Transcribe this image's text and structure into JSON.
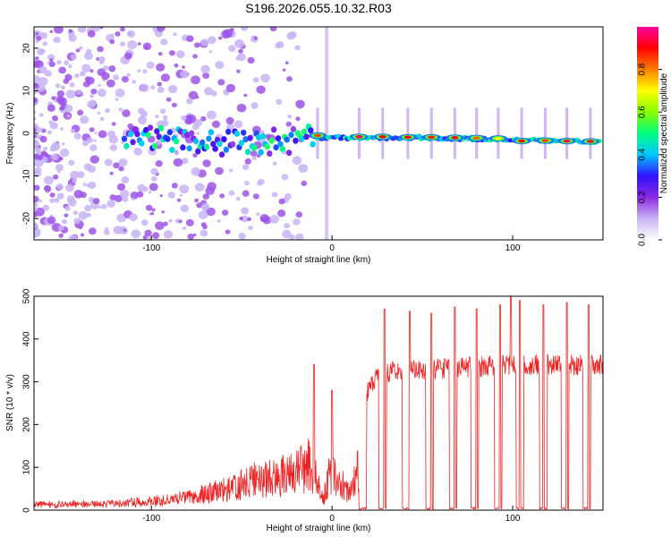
{
  "figure_title": "S196.2026.055.10.32.R03",
  "colors": {
    "snr_line": "#ee2222",
    "axis": "#000000",
    "colormap": [
      "#ffffff",
      "#c8b4f4",
      "#8a2be2",
      "#3010ff",
      "#00c8ff",
      "#00ff80",
      "#88ff00",
      "#ffff00",
      "#ff8000",
      "#ff0000",
      "#ff00a0"
    ]
  },
  "chart_data": [
    {
      "type": "heatmap",
      "title": "S196.2026.055.10.32.R03",
      "xlabel": "Height of straight line (km)",
      "ylabel": "Frequency (Hz)",
      "xlim": [
        -165,
        150
      ],
      "ylim": [
        -25,
        25
      ],
      "x_ticks": [
        -100,
        0,
        100
      ],
      "y_ticks": [
        -20,
        -10,
        0,
        10,
        20
      ],
      "colorbar": {
        "label": "Normalized spectral amplitude",
        "range": [
          0,
          1
        ],
        "ticks": [
          "0.0",
          "0.2",
          "0.4",
          "0.6",
          "0.8"
        ],
        "tick_values": [
          0.0,
          0.2,
          0.4,
          0.6,
          0.8
        ]
      },
      "ridge_frequency_hz": [
        {
          "x": -165,
          "y": 0
        },
        {
          "x": -110,
          "y": -1
        },
        {
          "x": -60,
          "y": -2
        },
        {
          "x": -20,
          "y": -2
        },
        {
          "x": -10,
          "y": -1
        },
        {
          "x": 0,
          "y": -1
        },
        {
          "x": 50,
          "y": -1
        },
        {
          "x": 100,
          "y": -1.5
        },
        {
          "x": 150,
          "y": -2
        }
      ],
      "spectral_bursts": [
        {
          "x": -8,
          "y": -0.5,
          "amp": 0.85
        },
        {
          "x": 15,
          "y": -0.8,
          "amp": 0.95
        },
        {
          "x": 28,
          "y": -0.8,
          "amp": 0.9
        },
        {
          "x": 42,
          "y": -0.9,
          "amp": 0.92
        },
        {
          "x": 55,
          "y": -0.9,
          "amp": 0.88
        },
        {
          "x": 68,
          "y": -1.0,
          "amp": 0.93
        },
        {
          "x": 80,
          "y": -1.1,
          "amp": 0.82
        },
        {
          "x": 92,
          "y": -1.2,
          "amp": 0.7
        },
        {
          "x": 105,
          "y": -1.8,
          "amp": 0.9
        },
        {
          "x": 118,
          "y": -1.7,
          "amp": 0.85
        },
        {
          "x": 130,
          "y": -1.8,
          "amp": 0.95
        },
        {
          "x": 143,
          "y": -1.9,
          "amp": 0.92
        }
      ]
    },
    {
      "type": "line",
      "title": "",
      "xlabel": "Height of straight line (km)",
      "ylabel": "SNR (10 * v/v)",
      "xlim": [
        -165,
        150
      ],
      "ylim": [
        0,
        500
      ],
      "x_ticks": [
        -100,
        0,
        100
      ],
      "y_ticks": [
        0,
        100,
        200,
        300,
        400,
        500
      ],
      "series": [
        {
          "name": "SNR",
          "envelope": [
            {
              "x": -165,
              "y": 20
            },
            {
              "x": -120,
              "y": 22
            },
            {
              "x": -100,
              "y": 30
            },
            {
              "x": -80,
              "y": 45
            },
            {
              "x": -60,
              "y": 70
            },
            {
              "x": -45,
              "y": 100
            },
            {
              "x": -30,
              "y": 120
            },
            {
              "x": -20,
              "y": 130
            },
            {
              "x": -12,
              "y": 170
            },
            {
              "x": -5,
              "y": 40
            },
            {
              "x": 0,
              "y": 150
            },
            {
              "x": 5,
              "y": 90
            },
            {
              "x": 10,
              "y": 60
            },
            {
              "x": 15,
              "y": 160
            },
            {
              "x": 18,
              "y": 270
            },
            {
              "x": 25,
              "y": 315
            },
            {
              "x": 35,
              "y": 325
            },
            {
              "x": 60,
              "y": 330
            },
            {
              "x": 100,
              "y": 340
            },
            {
              "x": 150,
              "y": 340
            }
          ],
          "dropout_centers": [
            17,
            28,
            41,
            54,
            67,
            79,
            92,
            104,
            117,
            129,
            141
          ],
          "spike_peaks": [
            {
              "x": -10,
              "y": 340
            },
            {
              "x": 0,
              "y": 280
            },
            {
              "x": 29,
              "y": 470
            },
            {
              "x": 43,
              "y": 465
            },
            {
              "x": 55,
              "y": 460
            },
            {
              "x": 68,
              "y": 475
            },
            {
              "x": 80,
              "y": 470
            },
            {
              "x": 93,
              "y": 480
            },
            {
              "x": 99,
              "y": 500
            },
            {
              "x": 104,
              "y": 490
            },
            {
              "x": 117,
              "y": 480
            },
            {
              "x": 130,
              "y": 485
            },
            {
              "x": 142,
              "y": 480
            }
          ]
        }
      ]
    }
  ]
}
